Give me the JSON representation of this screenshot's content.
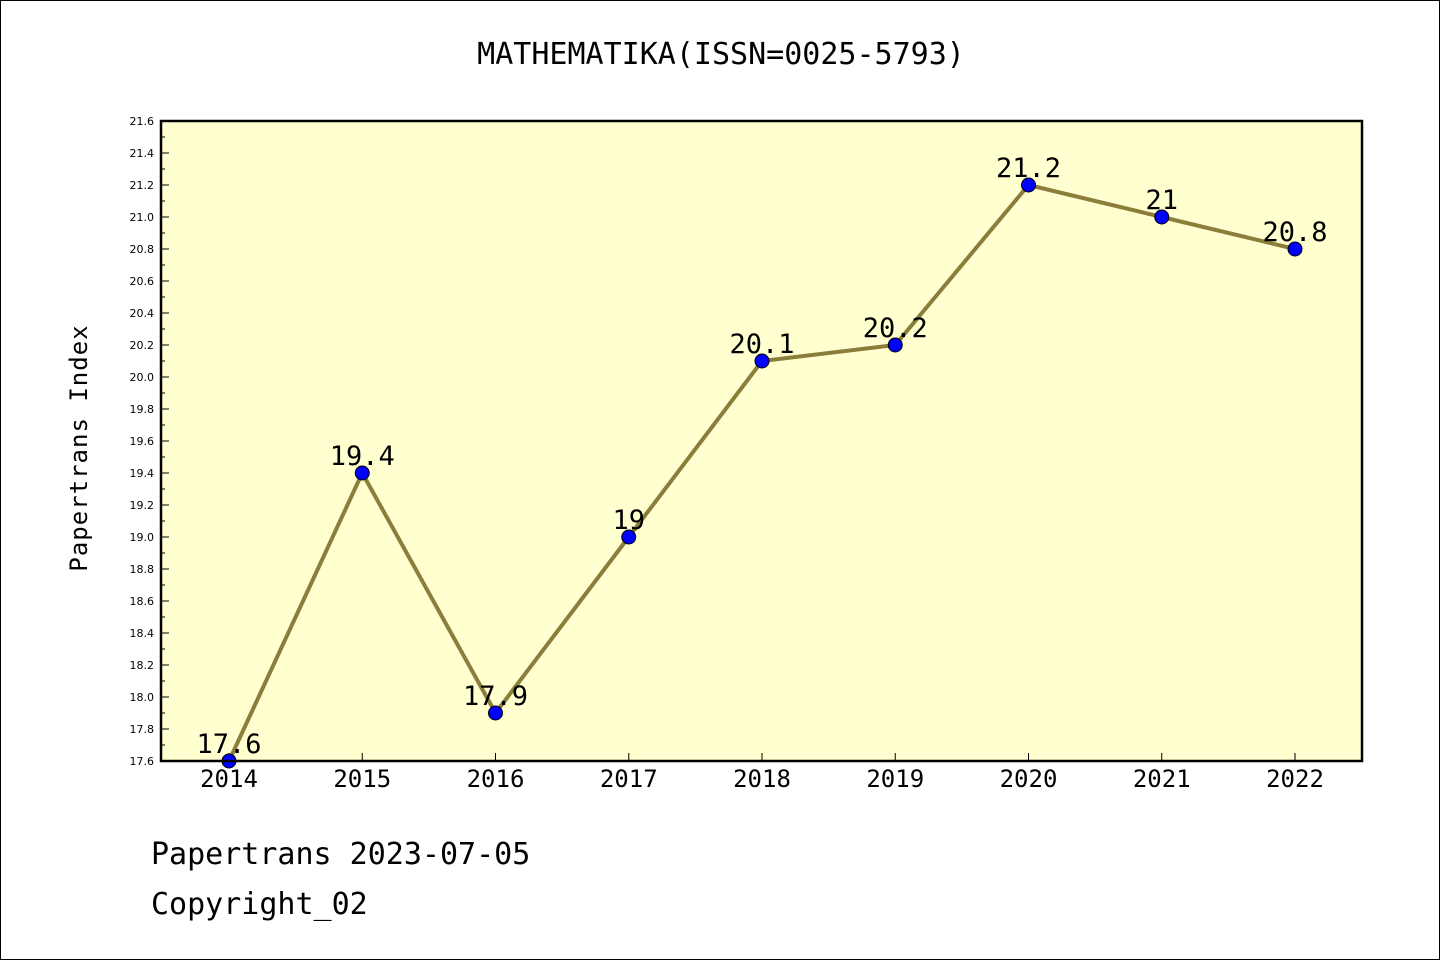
{
  "chart_data": {
    "type": "line",
    "title": "MATHEMATIKA(ISSN=0025-5793)",
    "xlabel": "",
    "ylabel": "Papertrans Index",
    "categories": [
      "2014",
      "2015",
      "2016",
      "2017",
      "2018",
      "2019",
      "2020",
      "2021",
      "2022"
    ],
    "values": [
      17.6,
      19.4,
      17.9,
      19,
      20.1,
      20.2,
      21.2,
      21,
      20.8
    ],
    "data_labels": [
      "17.6",
      "19.4",
      "17.9",
      "19",
      "20.1",
      "20.2",
      "21.2",
      "21",
      "20.8"
    ],
    "ylim": [
      17.6,
      21.6
    ],
    "y_ticks": [
      "17.6",
      "17.8",
      "18.0",
      "18.2",
      "18.4",
      "18.6",
      "18.8",
      "19.0",
      "19.2",
      "19.4",
      "19.6",
      "19.8",
      "20.0",
      "20.2",
      "20.4",
      "20.6",
      "20.8",
      "21.0",
      "21.2",
      "21.4",
      "21.6"
    ],
    "grid": false,
    "line_color": "#8b7d3a",
    "marker_color": "#0000ff",
    "plot_background": "#ffffd0"
  },
  "footer": {
    "line1": "Papertrans 2023-07-05",
    "line2": "Copyright_02"
  }
}
